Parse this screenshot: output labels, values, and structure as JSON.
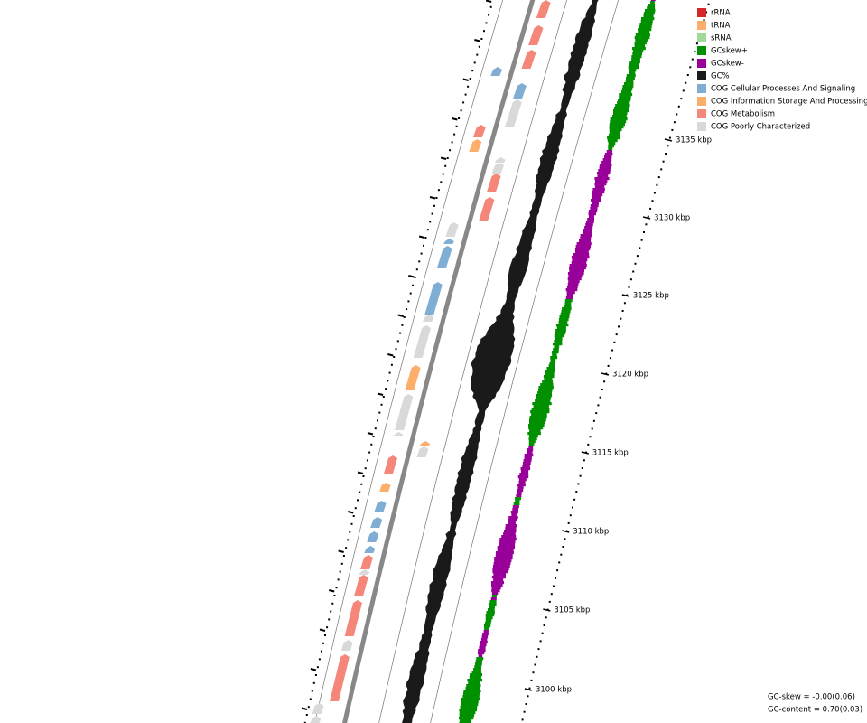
{
  "legend": [
    {
      "label": "rRNA",
      "color": "#d62728"
    },
    {
      "label": "tRNA",
      "color": "#fdae6b"
    },
    {
      "label": "sRNA",
      "color": "#a1d99b"
    },
    {
      "label": "GCskew+",
      "color": "#009000"
    },
    {
      "label": "GCskew-",
      "color": "#990099"
    },
    {
      "label": "GC%",
      "color": "#1a1a1a"
    },
    {
      "label": "COG Cellular Processes And Signaling",
      "color": "#7fadd4"
    },
    {
      "label": "COG Information Storage And Processing",
      "color": "#fdae6b"
    },
    {
      "label": "COG Metabolism",
      "color": "#f4877a"
    },
    {
      "label": "COG Poorly Characterized",
      "color": "#d9d9d9"
    }
  ],
  "scale": {
    "ticks": [
      "3135 kbp",
      "3130 kbp",
      "3125 kbp",
      "3120 kbp",
      "3115 kbp",
      "3110 kbp",
      "3105 kbp",
      "3100 kbp"
    ]
  },
  "footer": [
    "GC-skew = -0.00(0.06)",
    "GC-content = 0.70(0.03)"
  ]
}
